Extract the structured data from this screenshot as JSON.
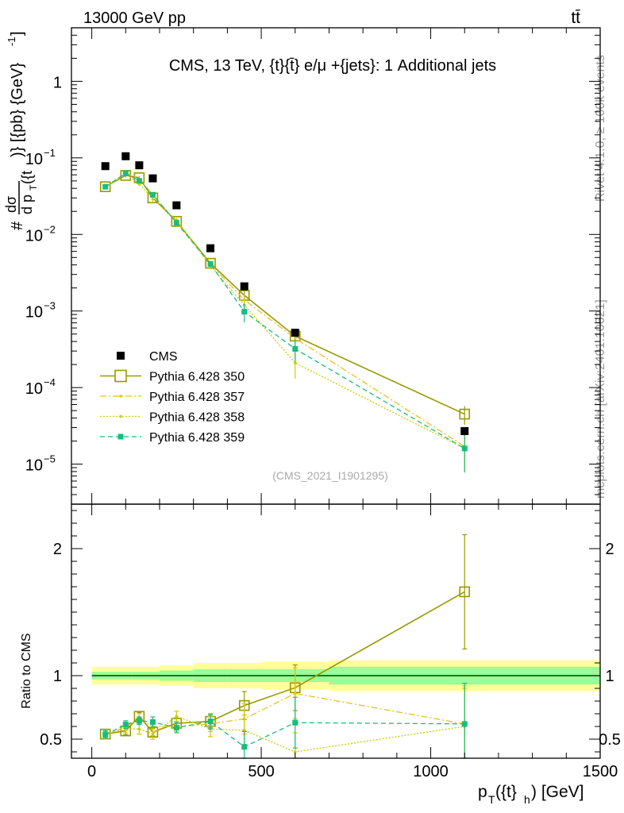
{
  "header": {
    "left": "13000 GeV pp",
    "right": "tt̄"
  },
  "side_labels": {
    "rivet": "Rivet 4.1.0, ≥ 100k events",
    "mcplots": "mcplots.cern.ch [arXiv:2401.10621]"
  },
  "chart_data": {
    "type": "line",
    "title": "CMS, 13 TeV, {t}{t̄} e/μ +{jets}: 1 Additional jets",
    "watermark": "(CMS_2021_I1901295)",
    "xlabel": "p_T({t}_h) [GeV]",
    "xlabel_main": "p",
    "xlabel_sub1": "T",
    "xlabel_mid": "({t}",
    "xlabel_sub2": "h",
    "xlabel_end": ") [GeV]",
    "ylabel": "# dσ / d p_T({t_h}) [{pb} {GeV}^-1]",
    "ylabel_parts": {
      "hash": "#",
      "num": "dσ",
      "den": "d p",
      "den_sub": "T",
      "den_end": "({t",
      "after": ")} [{pb} {GeV}",
      "exp": "-1",
      "close": "]"
    },
    "ratio_ylabel": "Ratio to CMS",
    "xlim": [
      -60,
      1500
    ],
    "ylim_main": [
      3e-06,
      5
    ],
    "ylim_ratio": [
      0.35,
      2.35
    ],
    "x_ticks": [
      "0",
      "500",
      "1000",
      "1500"
    ],
    "y_ticks_main": [
      {
        "value": 1,
        "base": "1",
        "exp": ""
      },
      {
        "value": 0.1,
        "base": "10",
        "exp": "−1"
      },
      {
        "value": 0.01,
        "base": "10",
        "exp": "−2"
      },
      {
        "value": 0.001,
        "base": "10",
        "exp": "−3"
      },
      {
        "value": 0.0001,
        "base": "10",
        "exp": "−4"
      },
      {
        "value": 1e-05,
        "base": "10",
        "exp": "−5"
      }
    ],
    "y_ticks_ratio": [
      "0.5",
      "1",
      "2"
    ],
    "x": [
      40,
      100,
      140,
      180,
      250,
      350,
      450,
      600,
      1100
    ],
    "bins": [
      [
        0,
        70
      ],
      [
        70,
        120
      ],
      [
        120,
        160
      ],
      [
        160,
        200
      ],
      [
        200,
        300
      ],
      [
        300,
        400
      ],
      [
        400,
        500
      ],
      [
        500,
        700
      ],
      [
        700,
        1500
      ]
    ],
    "data": {
      "name": "CMS",
      "values": [
        0.078,
        0.105,
        0.08,
        0.054,
        0.024,
        0.0066,
        0.0021,
        0.00052,
        2.7e-05
      ],
      "rel_unc_inner": [
        0.03,
        0.03,
        0.03,
        0.03,
        0.04,
        0.05,
        0.05,
        0.05,
        0.07
      ],
      "rel_unc_outer": [
        0.07,
        0.07,
        0.07,
        0.07,
        0.08,
        0.1,
        0.1,
        0.11,
        0.12
      ]
    },
    "series": [
      {
        "name": "Pythia 6.428 350",
        "color": "#999900",
        "dash": "",
        "marker": "open-square",
        "values": [
          0.042,
          0.059,
          0.055,
          0.03,
          0.0148,
          0.0042,
          0.0016,
          0.00047,
          4.5e-05
        ],
        "ratio": [
          0.54,
          0.565,
          0.68,
          0.555,
          0.625,
          0.64,
          0.765,
          0.905,
          1.66
        ],
        "ratio_err": [
          0.03,
          0.03,
          0.03,
          0.03,
          0.04,
          0.05,
          0.11,
          0.18,
          0.45
        ]
      },
      {
        "name": "Pythia 6.428 357",
        "color": "#e6c21f",
        "dash": "8 3 2 3",
        "marker": "dot",
        "values": [
          0.041,
          0.063,
          0.053,
          0.033,
          0.0145,
          0.0041,
          0.0014,
          0.00044,
          1.7e-05
        ],
        "ratio": [
          0.53,
          0.6,
          0.66,
          0.6,
          0.6,
          0.62,
          0.66,
          0.86,
          0.62
        ],
        "ratio_err": [
          0.03,
          0.03,
          0.04,
          0.04,
          0.04,
          0.06,
          0.12,
          0.2,
          0.3
        ]
      },
      {
        "name": "Pythia 6.428 358",
        "color": "#cccc00",
        "dash": "2 2",
        "marker": "dot",
        "values": [
          0.042,
          0.061,
          0.046,
          0.029,
          0.0155,
          0.0039,
          0.0012,
          0.00021,
          1.6e-05
        ],
        "ratio": [
          0.54,
          0.58,
          0.58,
          0.54,
          0.68,
          0.58,
          0.57,
          0.4,
          0.6
        ],
        "ratio_err": [
          0.03,
          0.03,
          0.04,
          0.04,
          0.04,
          0.06,
          0.12,
          0.15,
          0.3
        ]
      },
      {
        "name": "Pythia 6.428 359",
        "color": "#1abc7c",
        "dash": "6 4",
        "marker": "filled-square",
        "values": [
          0.042,
          0.063,
          0.05,
          0.033,
          0.0142,
          0.0041,
          0.00098,
          0.00032,
          1.6e-05
        ],
        "ratio": [
          0.535,
          0.615,
          0.645,
          0.635,
          0.59,
          0.64,
          0.44,
          0.63,
          0.62
        ],
        "ratio_err": [
          0.03,
          0.03,
          0.03,
          0.04,
          0.04,
          0.06,
          0.12,
          0.2,
          0.32
        ]
      }
    ],
    "legend_position": "lower-left"
  }
}
